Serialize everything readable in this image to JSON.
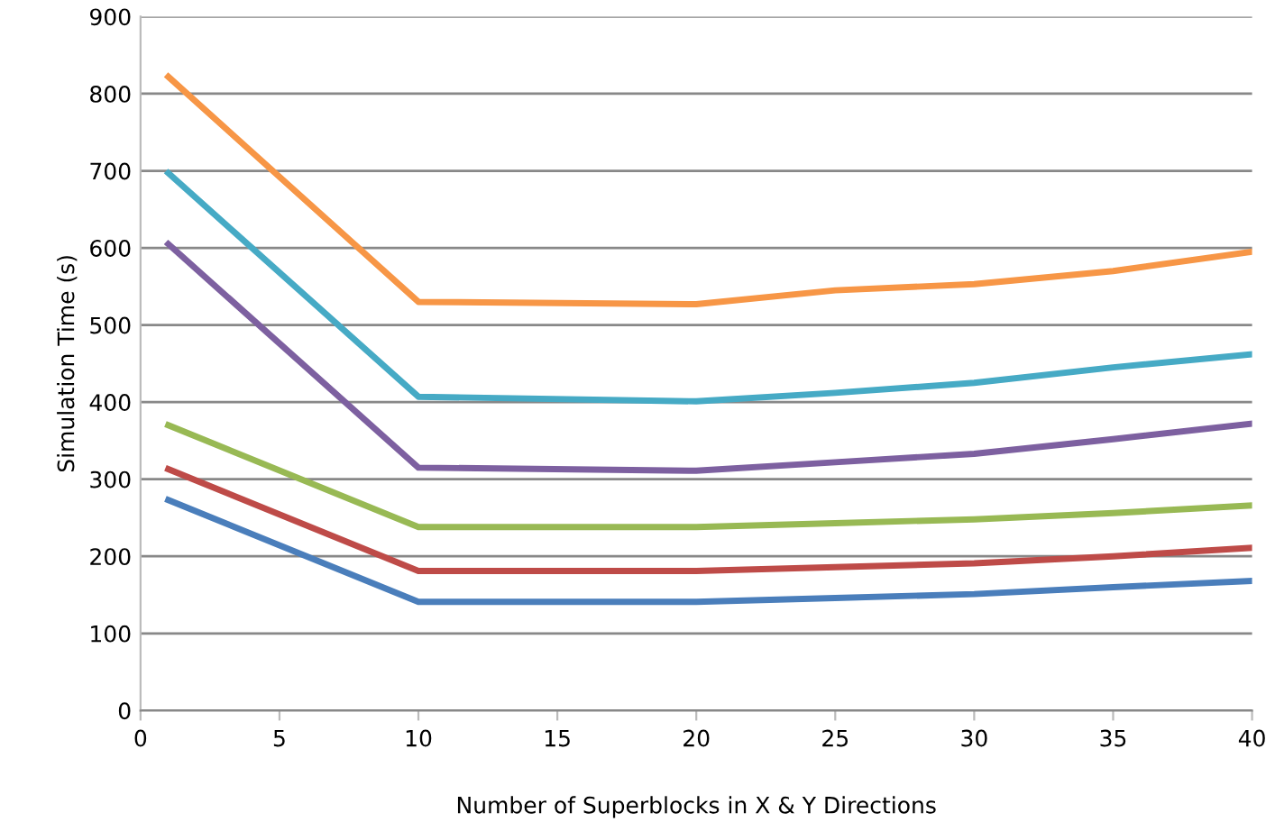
{
  "chart_data": {
    "type": "line",
    "xlabel": "Number of Superblocks in X & Y Directions",
    "ylabel": "Simulation Time (s)",
    "x": [
      1,
      10,
      20,
      25,
      30,
      35,
      40
    ],
    "series": [
      {
        "color": "#4a7ebb",
        "values": [
          273,
          141,
          141,
          146,
          151,
          160,
          168
        ]
      },
      {
        "color": "#be4b48",
        "values": [
          313,
          181,
          181,
          186,
          191,
          200,
          211
        ]
      },
      {
        "color": "#98b954",
        "values": [
          370,
          238,
          238,
          243,
          248,
          256,
          266
        ]
      },
      {
        "color": "#7d60a0",
        "values": [
          605,
          315,
          311,
          322,
          333,
          352,
          372
        ]
      },
      {
        "color": "#46aac5",
        "values": [
          697,
          407,
          401,
          412,
          425,
          445,
          462
        ]
      },
      {
        "color": "#f79646",
        "values": [
          822,
          530,
          527,
          545,
          553,
          570,
          595
        ]
      }
    ],
    "xlim": [
      0,
      40
    ],
    "xticks": [
      0,
      5,
      10,
      15,
      20,
      25,
      30,
      35,
      40
    ],
    "ylim": [
      0,
      900
    ],
    "yticks": [
      0,
      100,
      200,
      300,
      400,
      500,
      600,
      700,
      800,
      900
    ],
    "grid": "y",
    "legend": false,
    "marker": "none",
    "line_style": "solid"
  }
}
